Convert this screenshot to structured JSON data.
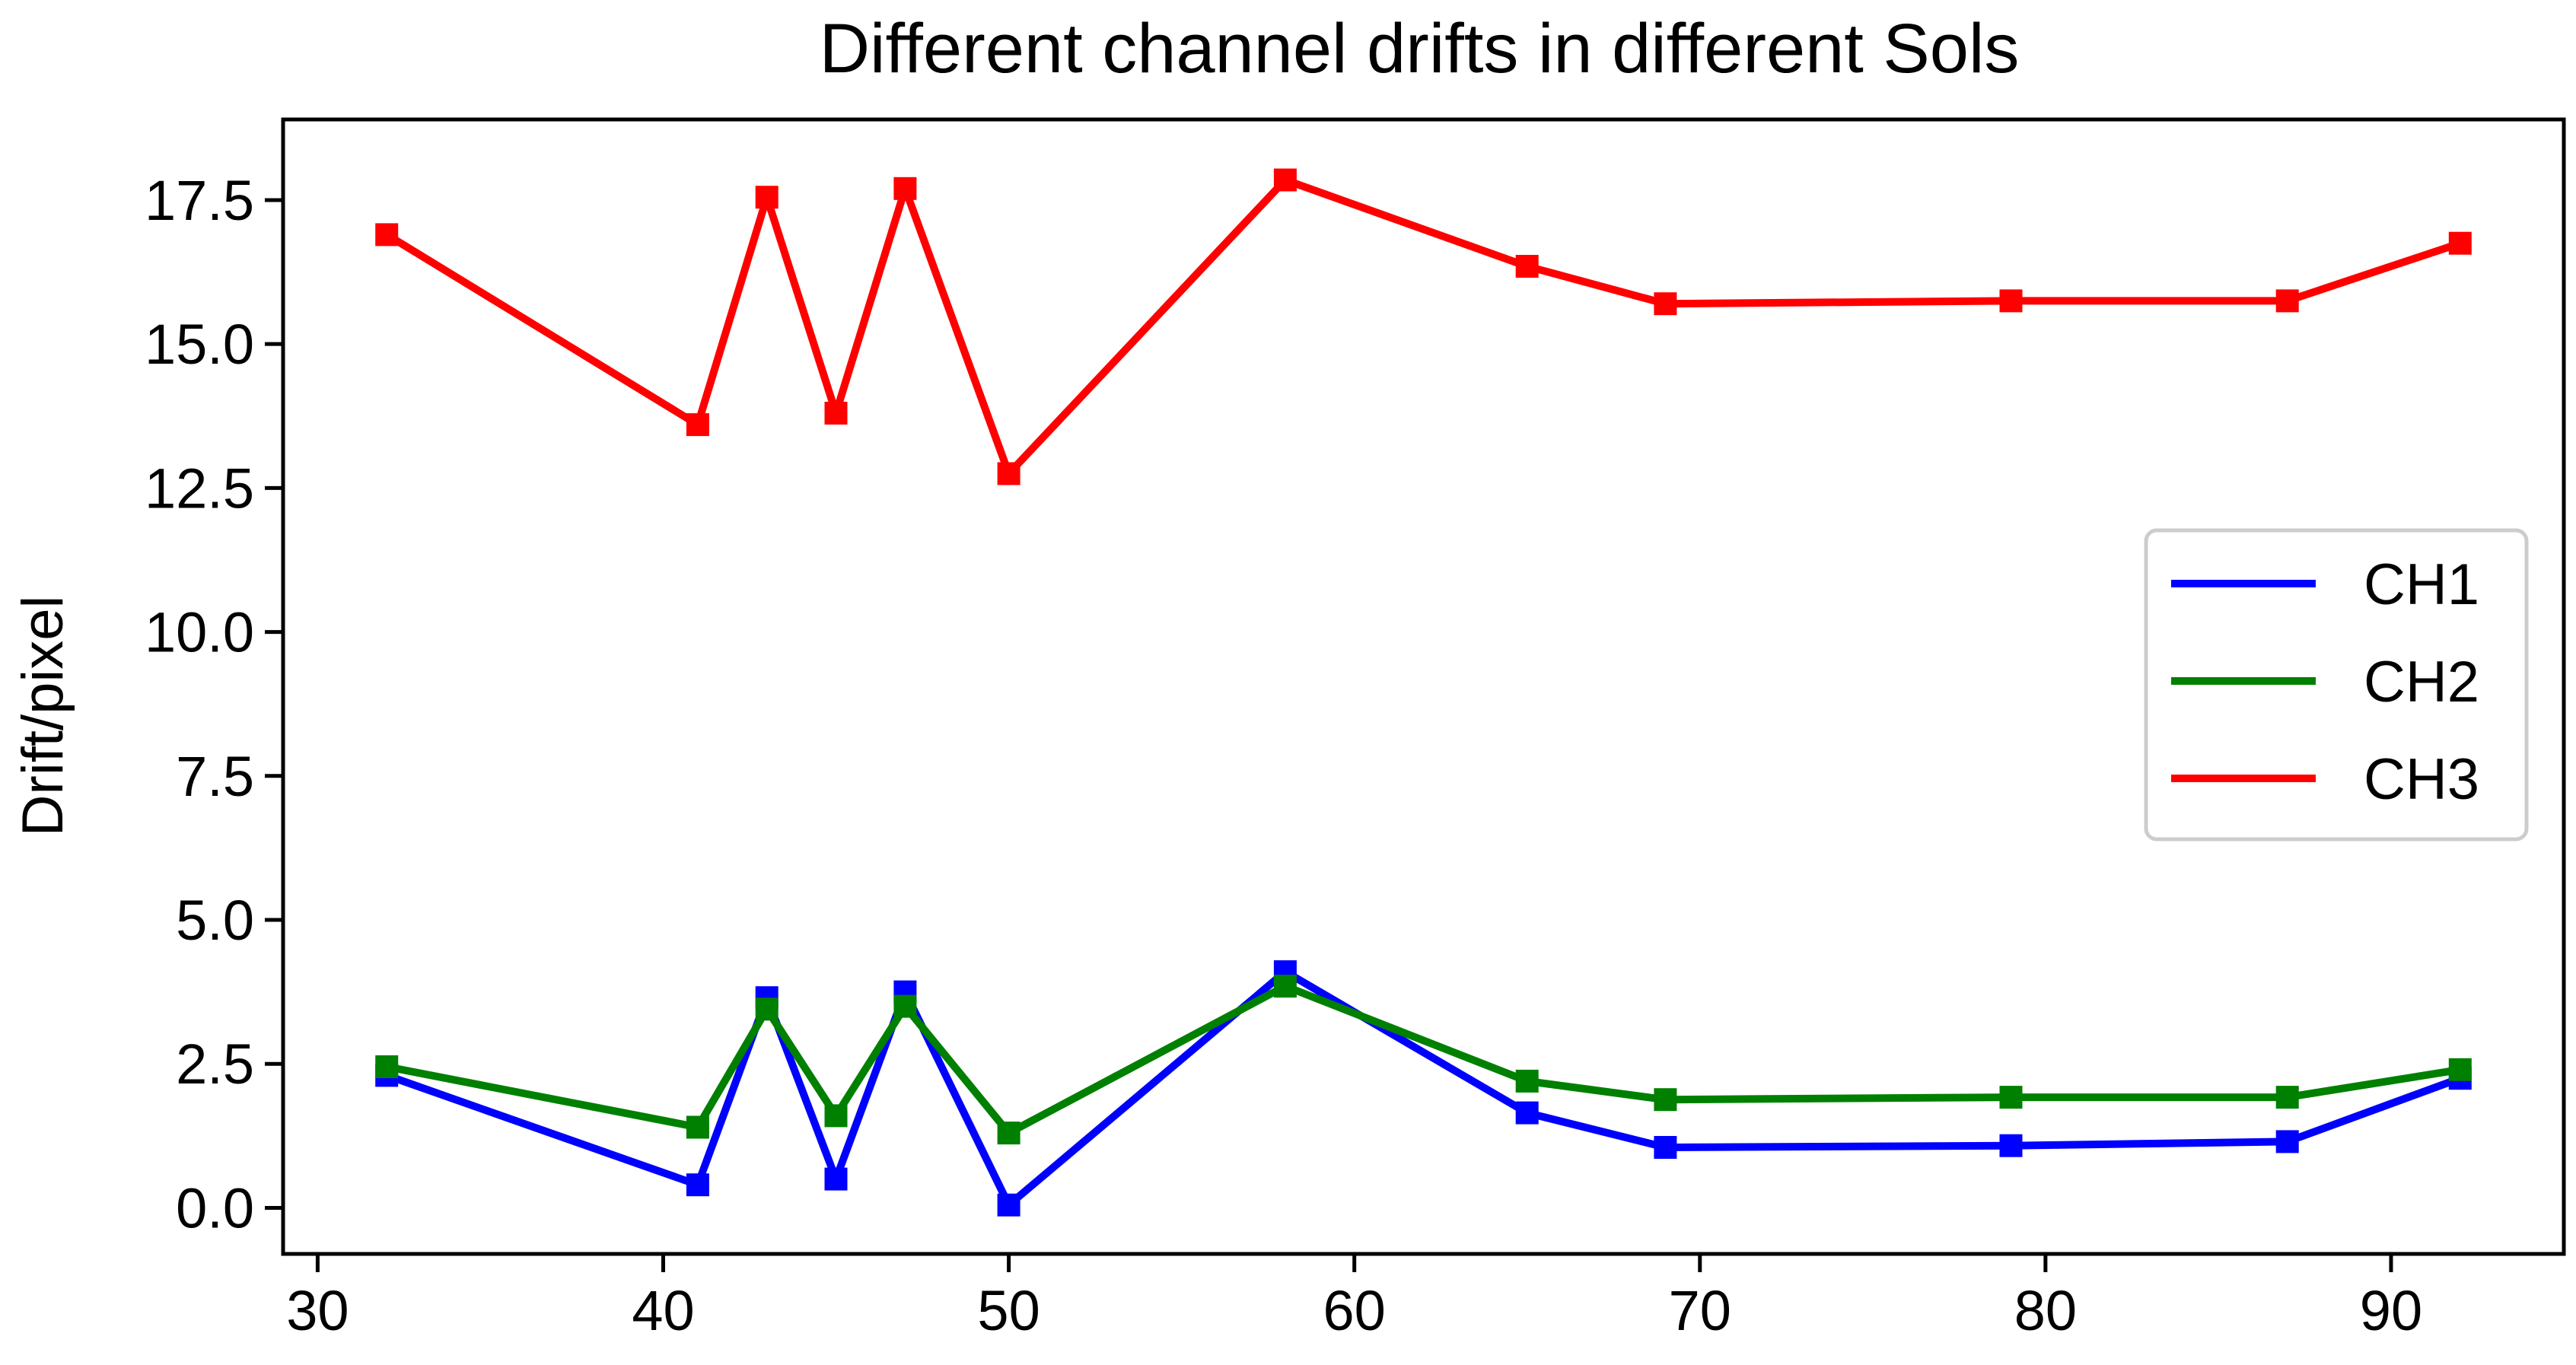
{
  "chart_data": {
    "type": "line",
    "title": "Different channel drifts in different Sols",
    "xlabel": "",
    "ylabel": "Drift/pixel",
    "xlim": [
      29,
      95
    ],
    "ylim": [
      -0.8,
      18.9
    ],
    "xticks": [
      30,
      40,
      50,
      60,
      70,
      80,
      90
    ],
    "yticks": [
      0.0,
      2.5,
      5.0,
      7.5,
      10.0,
      12.5,
      15.0,
      17.5
    ],
    "ytick_labels": [
      "0.0",
      "2.5",
      "5.0",
      "7.5",
      "10.0",
      "12.5",
      "15.0",
      "17.5"
    ],
    "grid": false,
    "legend_position": "center-right",
    "marker": "square",
    "x": [
      32,
      41,
      43,
      45,
      47,
      50,
      58,
      65,
      69,
      79,
      87,
      92
    ],
    "series": [
      {
        "name": "CH1",
        "color": "#0000ff",
        "values": [
          2.3,
          0.4,
          3.65,
          0.5,
          3.75,
          0.05,
          4.1,
          1.65,
          1.05,
          1.08,
          1.15,
          2.25
        ]
      },
      {
        "name": "CH2",
        "color": "#008000",
        "values": [
          2.45,
          1.4,
          3.45,
          1.6,
          3.5,
          1.3,
          3.85,
          2.2,
          1.88,
          1.92,
          1.92,
          2.4
        ]
      },
      {
        "name": "CH3",
        "color": "#ff0000",
        "values": [
          16.9,
          13.6,
          17.55,
          13.8,
          17.7,
          12.75,
          17.85,
          16.35,
          15.7,
          15.75,
          15.75,
          16.75
        ]
      }
    ]
  }
}
